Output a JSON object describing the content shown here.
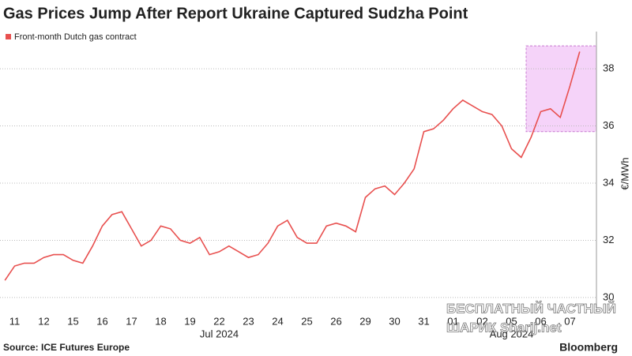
{
  "chart_data": {
    "type": "line",
    "title": "Gas Prices Jump After Report Ukraine Captured Sudzha Point",
    "y_label": "€/MWh",
    "source": "Source: ICE Futures Europe",
    "brand": "Bloomberg",
    "watermark": [
      "БЕСПЛАТНЫЙ ЧАСТНЫЙ",
      "ШАРИК Sharij.net"
    ],
    "categories": [
      null,
      "11",
      null,
      null,
      "12",
      null,
      null,
      "15",
      null,
      null,
      "16",
      null,
      null,
      "17",
      null,
      null,
      "18",
      null,
      null,
      "19",
      null,
      null,
      "22",
      null,
      null,
      "23",
      null,
      null,
      "24",
      null,
      null,
      "25",
      null,
      null,
      "26",
      null,
      null,
      "29",
      null,
      null,
      "30",
      null,
      null,
      "31",
      null,
      null,
      "01",
      null,
      null,
      "02",
      null,
      null,
      "05",
      null,
      null,
      "06",
      null,
      null,
      "07",
      null
    ],
    "x_groups": [
      {
        "label": "Jul 2024",
        "from": "11",
        "to": "31"
      },
      {
        "label": "Aug 2024",
        "from": "01",
        "to": "07"
      }
    ],
    "series": [
      {
        "name": "Front-month Dutch gas contract",
        "color": "#e8504f",
        "values": [
          30.6,
          31.1,
          31.2,
          31.2,
          31.4,
          31.5,
          31.5,
          31.3,
          31.2,
          31.8,
          32.5,
          32.9,
          33.0,
          32.4,
          31.8,
          32.0,
          32.5,
          32.4,
          32.0,
          31.9,
          32.1,
          31.5,
          31.6,
          31.8,
          31.6,
          31.4,
          31.5,
          31.9,
          32.5,
          32.7,
          32.1,
          31.9,
          31.9,
          32.5,
          32.6,
          32.5,
          32.3,
          33.5,
          33.8,
          33.9,
          33.6,
          34.0,
          34.5,
          35.8,
          35.9,
          36.2,
          36.6,
          36.9,
          36.7,
          36.5,
          36.4,
          36.0,
          35.2,
          34.9,
          35.6,
          36.5,
          36.6,
          36.3,
          37.4,
          38.6
        ]
      }
    ],
    "highlight": {
      "from": "06",
      "ylim": [
        35.8,
        38.8
      ],
      "color": "#f2c4f7"
    },
    "ylim": [
      29.5,
      39.3
    ],
    "yticks": [
      30,
      32,
      34,
      36,
      38
    ],
    "grid": true
  }
}
